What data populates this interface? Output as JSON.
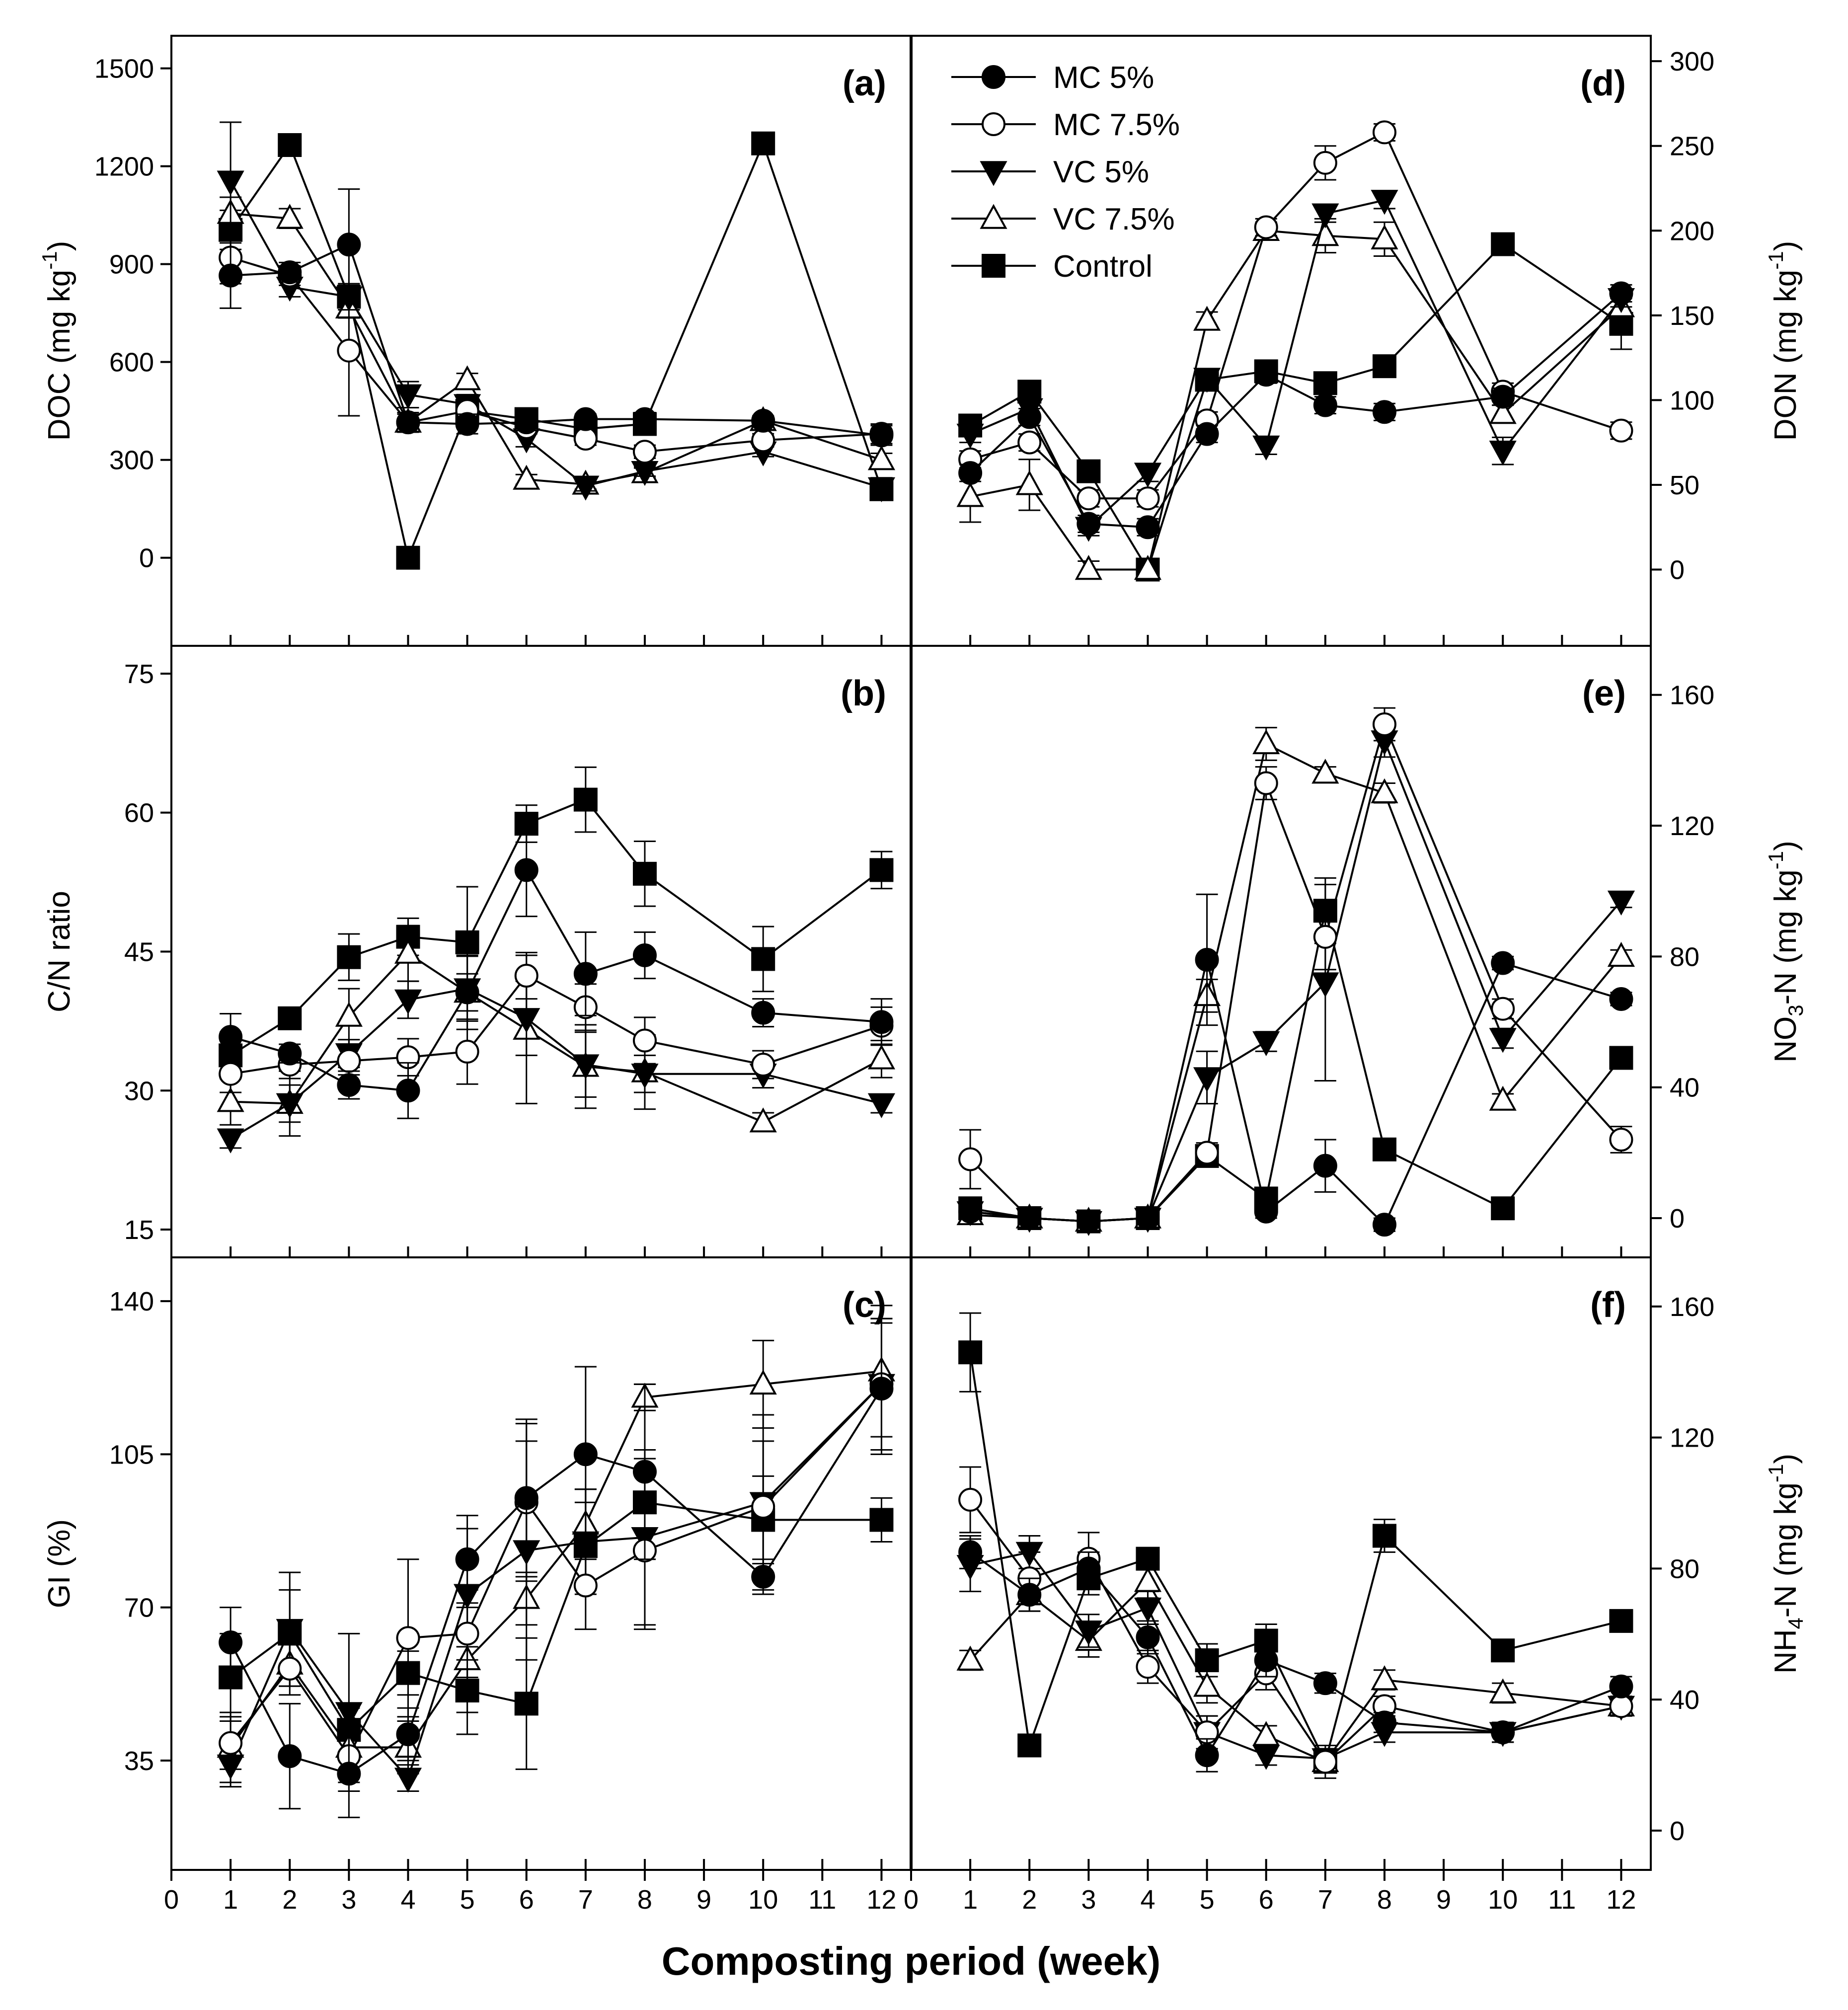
{
  "chart_data": {
    "type": "line",
    "x_title": "Composting period (week)",
    "x_ticks": [
      "0",
      "1",
      "2",
      "3",
      "4",
      "5",
      "6",
      "7",
      "8",
      "9",
      "10",
      "11",
      "12"
    ],
    "xlim": [
      0,
      12.5
    ],
    "legend": {
      "placement": "top-left of panel (d)",
      "entries": [
        {
          "label": "MC 5%",
          "marker": "circle-filled"
        },
        {
          "label": "MC 7.5%",
          "marker": "circle-open"
        },
        {
          "label": "VC 5%",
          "marker": "triangle-down-filled"
        },
        {
          "label": "VC 7.5%",
          "marker": "triangle-up-open"
        },
        {
          "label": "Control",
          "marker": "square-filled"
        }
      ]
    },
    "panels": [
      {
        "id": "a",
        "label": "(a)",
        "side": "left",
        "ylabel": "DOC (mg kg",
        "ylabel_sup": "-1",
        "ylabel_end": ")",
        "ylim": [
          -270,
          1600
        ],
        "yticks": [
          0,
          300,
          600,
          900,
          1200,
          1500
        ],
        "ytick_labels": [
          "0",
          "300",
          "600",
          "900",
          "1200",
          "1500"
        ],
        "x": [
          1,
          2,
          3,
          4,
          5,
          6,
          7,
          8,
          10,
          12
        ],
        "series": [
          {
            "name": "MC 5%",
            "values": [
              865,
              875,
              960,
              415,
              410,
              415,
              425,
              425,
              420,
              375
            ],
            "err": [
              100,
              30,
              170,
              30,
              30,
              25,
              15,
              20,
              10,
              30
            ]
          },
          {
            "name": "MC 7.5%",
            "values": [
              920,
              865,
              635,
              415,
              450,
              400,
              365,
              325,
              360,
              380
            ],
            "err": [
              80,
              30,
              200,
              30,
              30,
              20,
              20,
              20,
              20,
              30
            ]
          },
          {
            "name": "VC 5%",
            "values": [
              1155,
              830,
              800,
              500,
              470,
              365,
              220,
              265,
              325,
              215
            ],
            "err": [
              180,
              30,
              40,
              40,
              30,
              25,
              15,
              15,
              15,
              30
            ]
          },
          {
            "name": "VC 7.5%",
            "values": [
              1055,
              1040,
              765,
              415,
              545,
              240,
              225,
              260,
              420,
              300
            ],
            "err": [
              50,
              30,
              30,
              25,
              20,
              15,
              15,
              15,
              15,
              20
            ]
          },
          {
            "name": "Control",
            "values": [
              1005,
              1265,
              800,
              0,
              450,
              425,
              395,
              410,
              1270,
              210
            ],
            "err": [
              60,
              20,
              40,
              10,
              30,
              20,
              20,
              20,
              20,
              30
            ]
          }
        ]
      },
      {
        "id": "b",
        "label": "(b)",
        "side": "left",
        "ylabel": "C/N ratio",
        "ylim": [
          12,
          78
        ],
        "yticks": [
          15,
          30,
          45,
          60,
          75
        ],
        "ytick_labels": [
          "15",
          "30",
          "45",
          "60",
          "75"
        ],
        "x": [
          1,
          2,
          3,
          4,
          5,
          6,
          7,
          8,
          10,
          12
        ],
        "series": [
          {
            "name": "MC 5%",
            "values": [
              35.8,
              34.0,
              30.6,
              30.0,
              40.6,
              53.8,
              42.6,
              44.6,
              38.4,
              37.4
            ],
            "err": [
              2.5,
              1.0,
              1.5,
              3.0,
              2.0,
              5.0,
              4.5,
              2.5,
              1.5,
              2.5
            ]
          },
          {
            "name": "MC 7.5%",
            "values": [
              31.8,
              32.8,
              33.2,
              33.6,
              34.2,
              42.4,
              39.0,
              35.4,
              32.8,
              37.0
            ],
            "err": [
              2.0,
              1.5,
              1.5,
              2.0,
              3.5,
              2.5,
              2.5,
              2.5,
              1.5,
              2.0
            ]
          },
          {
            "name": "VC 5%",
            "values": [
              24.8,
              28.6,
              34.0,
              39.8,
              41.0,
              37.8,
              32.8,
              31.8,
              31.8,
              28.6
            ],
            "err": [
              1.0,
              2.0,
              1.5,
              2.0,
              3.5,
              4.0,
              3.5,
              2.0,
              1.5,
              1.0
            ]
          },
          {
            "name": "VC 7.5%",
            "values": [
              28.8,
              28.6,
              38.0,
              44.8,
              40.6,
              36.6,
              32.6,
              32.0,
              26.6,
              33.4
            ],
            "err": [
              2.5,
              3.5,
              3.0,
              3.0,
              4.0,
              8.0,
              4.5,
              4.0,
              1.0,
              2.0
            ]
          },
          {
            "name": "Control",
            "values": [
              33.8,
              37.8,
              44.4,
              46.6,
              46.0,
              58.8,
              61.4,
              53.4,
              44.2,
              53.8
            ],
            "err": [
              2.5,
              1.0,
              2.5,
              2.0,
              6.0,
              2.0,
              3.5,
              3.5,
              3.5,
              2.0
            ]
          }
        ]
      },
      {
        "id": "c",
        "label": "(c)",
        "side": "left",
        "ylabel": "GI (%)",
        "ylim": [
          10,
          150
        ],
        "yticks": [
          35,
          70,
          105,
          140
        ],
        "ytick_labels": [
          "35",
          "70",
          "105",
          "140"
        ],
        "x": [
          1,
          2,
          3,
          4,
          5,
          6,
          7,
          8,
          10,
          12
        ],
        "series": [
          {
            "name": "MC 5%",
            "values": [
              62,
              36,
              32,
              41,
              81,
              95,
              105,
              101,
              77,
              120
            ],
            "err": [
              8,
              12,
              10,
              6,
              10,
              18,
              20,
              20,
              4,
              15
            ]
          },
          {
            "name": "MC 7.5%",
            "values": [
              39,
              56,
              36,
              63,
              64,
              94,
              75,
              83,
              93,
              121
            ],
            "err": [
              6,
              6,
              6,
              18,
              10,
              18,
              10,
              18,
              15,
              15
            ]
          },
          {
            "name": "VC 5%",
            "values": [
              34,
              65,
              46,
              31,
              73,
              83,
              85,
              86,
              94,
              121
            ],
            "err": [
              5,
              13,
              18,
              3,
              15,
              25,
              12,
              20,
              20,
              15
            ]
          },
          {
            "name": "VC 7.5%",
            "values": [
              38,
              57,
              38,
              38,
              58,
              72,
              89,
              118,
              121,
              124
            ],
            "err": [
              8,
              5,
              5,
              6,
              12,
              6,
              8,
              3,
              10,
              15
            ]
          },
          {
            "name": "Control",
            "values": [
              54,
              64,
              42,
              55,
              51,
              48,
              84,
              94,
              90,
              90
            ],
            "err": [
              10,
              10,
              5,
              5,
              10,
              15,
              10,
              10,
              10,
              5
            ]
          }
        ]
      },
      {
        "id": "d",
        "label": "(d)",
        "side": "right",
        "ylabel": "DON (mg kg",
        "ylabel_sup": "-1",
        "ylabel_end": ")",
        "ylim": [
          -45,
          315
        ],
        "yticks": [
          0,
          50,
          100,
          150,
          200,
          250,
          300
        ],
        "ytick_labels": [
          "0",
          "50",
          "100",
          "150",
          "200",
          "250",
          "300"
        ],
        "x": [
          1,
          2,
          3,
          4,
          5,
          6,
          7,
          8,
          10,
          12
        ],
        "series": [
          {
            "name": "MC 5%",
            "values": [
              57,
              90,
              27,
              25,
              80,
              115,
              97,
              93,
              102,
              163
            ],
            "err": [
              5,
              5,
              5,
              5,
              5,
              5,
              5,
              5,
              5,
              5
            ]
          },
          {
            "name": "MC 7.5%",
            "values": [
              65,
              75,
              42,
              42,
              88,
              202,
              240,
              258,
              105,
              82
            ],
            "err": [
              5,
              5,
              5,
              5,
              5,
              5,
              10,
              5,
              5,
              5
            ]
          },
          {
            "name": "VC 5%",
            "values": [
              80,
              95,
              25,
              57,
              113,
              73,
              210,
              218,
              70,
              160
            ],
            "err": [
              5,
              5,
              5,
              5,
              5,
              5,
              5,
              5,
              8,
              5
            ]
          },
          {
            "name": "VC 7.5%",
            "values": [
              43,
              50,
              0,
              0,
              147,
              200,
              197,
              195,
              92,
              155
            ],
            "err": [
              15,
              15,
              5,
              5,
              5,
              5,
              10,
              10,
              5,
              5
            ]
          },
          {
            "name": "Control",
            "values": [
              85,
              105,
              58,
              0,
              112,
              117,
              110,
              120,
              192,
              145
            ],
            "err": [
              5,
              5,
              5,
              5,
              5,
              5,
              5,
              5,
              5,
              15
            ]
          }
        ]
      },
      {
        "id": "e",
        "label": "(e)",
        "side": "right",
        "ylabel": "NO",
        "ylabel_sub": "3",
        "ylabel_end": "-N (mg kg",
        "ylabel_sup": "-1",
        "ylabel_end2": ")",
        "ylim": [
          -12,
          175
        ],
        "yticks": [
          0,
          40,
          80,
          120,
          160
        ],
        "ytick_labels": [
          "0",
          "40",
          "80",
          "120",
          "160"
        ],
        "x": [
          1,
          2,
          3,
          4,
          5,
          6,
          7,
          8,
          10,
          12
        ],
        "series": [
          {
            "name": "MC 5%",
            "values": [
              2,
              0,
              -1,
              0,
              79,
              2,
              16,
              -2,
              78,
              67
            ],
            "err": [
              1,
              1,
              1,
              1,
              20,
              2,
              8,
              2,
              2,
              2
            ]
          },
          {
            "name": "MC 7.5%",
            "values": [
              18,
              0,
              -1,
              0,
              20,
              133,
              86,
              151,
              64,
              24
            ],
            "err": [
              9,
              1,
              1,
              1,
              3,
              5,
              10,
              5,
              3,
              4
            ]
          },
          {
            "name": "VC 5%",
            "values": [
              2,
              0,
              -1,
              0,
              43,
              54,
              72,
              146,
              55,
              97
            ],
            "err": [
              1,
              1,
              1,
              1,
              8,
              3,
              30,
              5,
              3,
              2
            ]
          },
          {
            "name": "VC 7.5%",
            "values": [
              1,
              0,
              -1,
              0,
              68,
              145,
              136,
              130,
              36,
              80
            ],
            "err": [
              1,
              1,
              1,
              1,
              5,
              5,
              2,
              3,
              2,
              2
            ]
          },
          {
            "name": "Control",
            "values": [
              3,
              0,
              -1,
              0,
              19,
              6,
              94,
              21,
              3,
              49
            ],
            "err": [
              1,
              1,
              1,
              1,
              3,
              2,
              10,
              3,
              2,
              2
            ]
          }
        ]
      },
      {
        "id": "f",
        "label": "(f)",
        "side": "right",
        "ylabel": "NH",
        "ylabel_sub": "4",
        "ylabel_end": "-N (mg kg",
        "ylabel_sup": "-1",
        "ylabel_end2": ")",
        "ylim": [
          -12,
          175
        ],
        "yticks": [
          0,
          40,
          80,
          120,
          160
        ],
        "ytick_labels": [
          "0",
          "40",
          "80",
          "120",
          "160"
        ],
        "x": [
          1,
          2,
          3,
          4,
          5,
          6,
          7,
          8,
          10,
          12
        ],
        "series": [
          {
            "name": "MC 5%",
            "values": [
              85,
              72,
              80,
              59,
              23,
              52,
              45,
              33,
              30,
              44
            ],
            "err": [
              5,
              5,
              5,
              5,
              5,
              5,
              3,
              3,
              3,
              3
            ]
          },
          {
            "name": "MC 7.5%",
            "values": [
              101,
              77,
              83,
              50,
              30,
              48,
              21,
              38,
              30,
              38
            ],
            "err": [
              10,
              8,
              8,
              5,
              5,
              5,
              5,
              3,
              3,
              3
            ]
          },
          {
            "name": "VC 5%",
            "values": [
              81,
              85,
              61,
              68,
              30,
              23,
              22,
              30,
              30,
              38
            ],
            "err": [
              8,
              5,
              5,
              5,
              5,
              3,
              3,
              3,
              3,
              3
            ]
          },
          {
            "name": "VC 7.5%",
            "values": [
              52,
              72,
              58,
              76,
              44,
              29,
              21,
              46,
              42,
              38
            ],
            "err": [
              3,
              5,
              5,
              5,
              5,
              3,
              3,
              3,
              3,
              3
            ]
          },
          {
            "name": "Control",
            "values": [
              146,
              26,
              77,
              83,
              52,
              58,
              21,
              90,
              55,
              64
            ],
            "err": [
              12,
              3,
              5,
              3,
              5,
              5,
              3,
              5,
              3,
              3
            ]
          }
        ]
      }
    ]
  }
}
